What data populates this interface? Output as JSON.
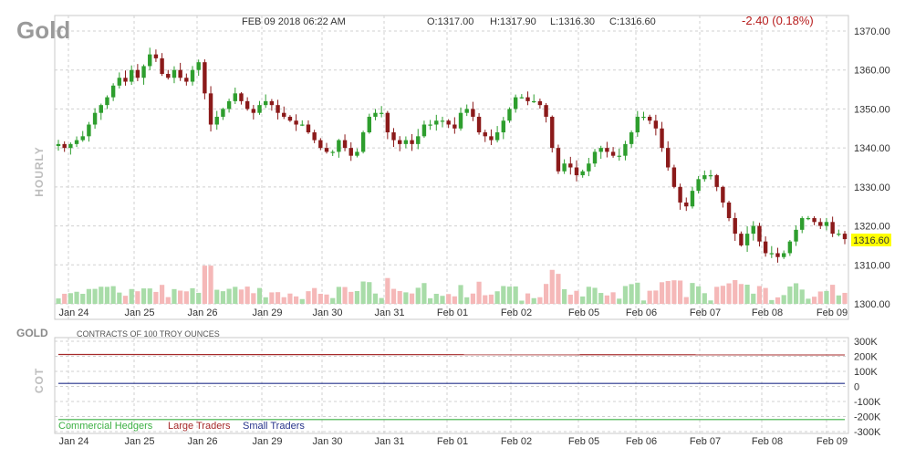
{
  "header": {
    "symbol": "Gold",
    "datetime": "FEB 09 2018 06:22 AM",
    "open": "O:1317.00",
    "high": "H:1317.90",
    "low": "L:1316.30",
    "close": "C:1316.60",
    "change": "-2.40 (0.18%)",
    "interval_label": "HOURLY",
    "last_price_label": "1316.60"
  },
  "cot_panel": {
    "symbol_label": "GOLD",
    "subtitle": "CONTRACTS OF 100 TROY OUNCES",
    "side_label": "COT"
  },
  "colors": {
    "up": "#2e9e2e",
    "down": "#8b1a1a",
    "vol_up": "#a8dca8",
    "vol_down": "#f5b8b8",
    "grid": "#d0d0d0",
    "last_price_bg": "#ffff00",
    "commercial": "#3cb043",
    "large": "#a52a2a",
    "small": "#27348b"
  },
  "chart_data": [
    {
      "type": "candlestick",
      "title": "Gold",
      "interval": "hourly",
      "ylim": [
        1300,
        1370
      ],
      "y_ticks": [
        "1370.00",
        "1360.00",
        "1350.00",
        "1340.00",
        "1330.00",
        "1320.00",
        "1310.00",
        "1300.00"
      ],
      "x_ticks": [
        "Jan 24",
        "Jan 25",
        "Jan 26",
        "Jan 29",
        "Jan 30",
        "Jan 31",
        "Feb 01",
        "Feb 02",
        "Feb 05",
        "Feb 06",
        "Feb 07",
        "Feb 08",
        "Feb 09"
      ],
      "grid": true,
      "last_price": 1316.6,
      "close_path": [
        [
          "Jan 24",
          1341
        ],
        [
          "Jan 24",
          1340
        ],
        [
          "Jan 24",
          1341
        ],
        [
          "Jan 24",
          1342
        ],
        [
          "Jan 24",
          1343
        ],
        [
          "Jan 24",
          1346
        ],
        [
          "Jan 24",
          1349
        ],
        [
          "Jan 24",
          1351
        ],
        [
          "Jan 24",
          1353
        ],
        [
          "Jan 24",
          1356
        ],
        [
          "Jan 25",
          1358
        ],
        [
          "Jan 25",
          1357
        ],
        [
          "Jan 25",
          1360
        ],
        [
          "Jan 25",
          1358
        ],
        [
          "Jan 25",
          1361
        ],
        [
          "Jan 25",
          1364
        ],
        [
          "Jan 25",
          1363
        ],
        [
          "Jan 25",
          1359
        ],
        [
          "Jan 25",
          1358
        ],
        [
          "Jan 25",
          1360
        ],
        [
          "Jan 25",
          1358
        ],
        [
          "Jan 25",
          1357
        ],
        [
          "Jan 25",
          1360
        ],
        [
          "Jan 25",
          1362
        ],
        [
          "Jan 25",
          1354
        ],
        [
          "Jan 26",
          1346
        ],
        [
          "Jan 26",
          1348
        ],
        [
          "Jan 26",
          1350
        ],
        [
          "Jan 26",
          1352
        ],
        [
          "Jan 26",
          1354
        ],
        [
          "Jan 26",
          1352
        ],
        [
          "Jan 26",
          1350
        ],
        [
          "Jan 26",
          1349
        ],
        [
          "Jan 26",
          1351
        ],
        [
          "Jan 26",
          1352
        ],
        [
          "Jan 26",
          1351
        ],
        [
          "Jan 26",
          1349
        ],
        [
          "Jan 29",
          1348
        ],
        [
          "Jan 29",
          1347
        ],
        [
          "Jan 29",
          1346
        ],
        [
          "Jan 29",
          1346
        ],
        [
          "Jan 29",
          1344
        ],
        [
          "Jan 29",
          1342
        ],
        [
          "Jan 29",
          1340
        ],
        [
          "Jan 29",
          1339
        ],
        [
          "Jan 29",
          1339
        ],
        [
          "Jan 30",
          1342
        ],
        [
          "Jan 30",
          1340
        ],
        [
          "Jan 30",
          1338
        ],
        [
          "Jan 30",
          1339
        ],
        [
          "Jan 30",
          1344
        ],
        [
          "Jan 30",
          1348
        ],
        [
          "Jan 30",
          1349
        ],
        [
          "Jan 30",
          1349
        ],
        [
          "Jan 30",
          1344
        ],
        [
          "Jan 30",
          1342
        ],
        [
          "Jan 31",
          1341
        ],
        [
          "Jan 31",
          1342
        ],
        [
          "Jan 31",
          1341
        ],
        [
          "Jan 31",
          1343
        ],
        [
          "Jan 31",
          1346
        ],
        [
          "Jan 31",
          1346
        ],
        [
          "Jan 31",
          1347
        ],
        [
          "Jan 31",
          1347
        ],
        [
          "Jan 31",
          1346
        ],
        [
          "Feb 01",
          1345
        ],
        [
          "Feb 01",
          1349
        ],
        [
          "Feb 01",
          1350
        ],
        [
          "Feb 01",
          1348
        ],
        [
          "Feb 01",
          1344
        ],
        [
          "Feb 01",
          1343
        ],
        [
          "Feb 01",
          1342
        ],
        [
          "Feb 01",
          1344
        ],
        [
          "Feb 01",
          1347
        ],
        [
          "Feb 01",
          1350
        ],
        [
          "Feb 02",
          1353
        ],
        [
          "Feb 02",
          1353
        ],
        [
          "Feb 02",
          1352
        ],
        [
          "Feb 02",
          1352
        ],
        [
          "Feb 02",
          1351
        ],
        [
          "Feb 02",
          1348
        ],
        [
          "Feb 02",
          1340
        ],
        [
          "Feb 02",
          1334
        ],
        [
          "Feb 02",
          1336
        ],
        [
          "Feb 02",
          1335
        ],
        [
          "Feb 05",
          1333
        ],
        [
          "Feb 05",
          1334
        ],
        [
          "Feb 05",
          1336
        ],
        [
          "Feb 05",
          1339
        ],
        [
          "Feb 05",
          1340
        ],
        [
          "Feb 05",
          1339
        ],
        [
          "Feb 05",
          1338
        ],
        [
          "Feb 05",
          1338
        ],
        [
          "Feb 05",
          1341
        ],
        [
          "Feb 06",
          1344
        ],
        [
          "Feb 06",
          1348
        ],
        [
          "Feb 06",
          1348
        ],
        [
          "Feb 06",
          1347
        ],
        [
          "Feb 06",
          1345
        ],
        [
          "Feb 06",
          1340
        ],
        [
          "Feb 06",
          1335
        ],
        [
          "Feb 06",
          1330
        ],
        [
          "Feb 06",
          1326
        ],
        [
          "Feb 07",
          1325
        ],
        [
          "Feb 07",
          1329
        ],
        [
          "Feb 07",
          1332
        ],
        [
          "Feb 07",
          1333
        ],
        [
          "Feb 07",
          1333
        ],
        [
          "Feb 07",
          1330
        ],
        [
          "Feb 07",
          1326
        ],
        [
          "Feb 07",
          1322
        ],
        [
          "Feb 07",
          1318
        ],
        [
          "Feb 07",
          1315
        ],
        [
          "Feb 08",
          1318
        ],
        [
          "Feb 08",
          1320
        ],
        [
          "Feb 08",
          1316
        ],
        [
          "Feb 08",
          1313
        ],
        [
          "Feb 08",
          1313
        ],
        [
          "Feb 08",
          1312
        ],
        [
          "Feb 08",
          1313
        ],
        [
          "Feb 08",
          1316
        ],
        [
          "Feb 08",
          1319
        ],
        [
          "Feb 08",
          1322
        ],
        [
          "Feb 09",
          1322
        ],
        [
          "Feb 09",
          1321
        ],
        [
          "Feb 09",
          1320
        ],
        [
          "Feb 09",
          1321
        ],
        [
          "Feb 09",
          1318
        ],
        [
          "Feb 09",
          1318
        ],
        [
          "Feb 09",
          1316.6
        ]
      ]
    },
    {
      "type": "line",
      "title": "COT",
      "subtitle": "CONTRACTS OF 100 TROY OUNCES",
      "ylim": [
        -300000,
        300000
      ],
      "y_ticks": [
        "300K",
        "200K",
        "100K",
        "0",
        "-100K",
        "-200K",
        "-300K"
      ],
      "x_ticks": [
        "Jan 24",
        "Jan 25",
        "Jan 26",
        "Jan 29",
        "Jan 30",
        "Jan 31",
        "Feb 01",
        "Feb 02",
        "Feb 05",
        "Feb 06",
        "Feb 07",
        "Feb 08",
        "Feb 09"
      ],
      "series": [
        {
          "name": "Commercial Hedgers",
          "values": [
            -220000,
            -220000
          ]
        },
        {
          "name": "Large Traders",
          "values": [
            212000,
            210000
          ]
        },
        {
          "name": "Small Traders",
          "values": [
            20000,
            20000
          ]
        }
      ]
    }
  ]
}
